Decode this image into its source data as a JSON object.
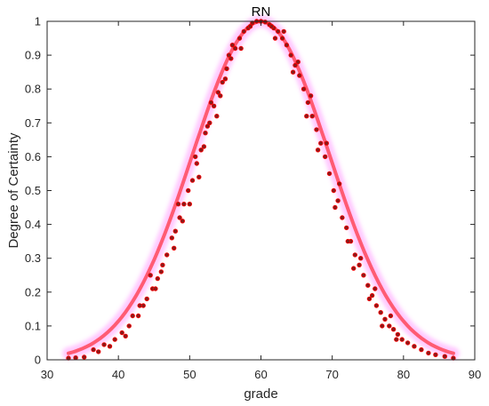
{
  "chart_data": {
    "type": "scatter",
    "title": "RN",
    "xlabel": "grade",
    "ylabel": "Degree of Certainty",
    "xlim": [
      30,
      90
    ],
    "ylim": [
      0,
      1
    ],
    "xticks": [
      "30",
      "40",
      "50",
      "60",
      "70",
      "80",
      "90"
    ],
    "yticks": [
      "0",
      "0.1",
      "0.2",
      "0.3",
      "0.4",
      "0.5",
      "0.6",
      "0.7",
      "0.8",
      "0.9",
      "1"
    ],
    "grid": false,
    "legend": "none",
    "colors": {
      "point_fill": "#8b1a1a",
      "point_halo": "#ff0000",
      "glow": "#ff66ff",
      "axes": "#262626"
    },
    "curve": {
      "center": 60,
      "sigma": 9.6,
      "peak": 1.0
    },
    "points": [
      {
        "x": 33.0,
        "y": 0.005
      },
      {
        "x": 34.0,
        "y": 0.006
      },
      {
        "x": 35.2,
        "y": 0.008
      },
      {
        "x": 36.5,
        "y": 0.03
      },
      {
        "x": 37.2,
        "y": 0.024
      },
      {
        "x": 38.0,
        "y": 0.045
      },
      {
        "x": 38.8,
        "y": 0.04
      },
      {
        "x": 39.5,
        "y": 0.06
      },
      {
        "x": 40.5,
        "y": 0.08
      },
      {
        "x": 41.5,
        "y": 0.1
      },
      {
        "x": 42.0,
        "y": 0.13
      },
      {
        "x": 42.8,
        "y": 0.13
      },
      {
        "x": 43.5,
        "y": 0.16
      },
      {
        "x": 44.0,
        "y": 0.18
      },
      {
        "x": 44.8,
        "y": 0.21
      },
      {
        "x": 45.5,
        "y": 0.24
      },
      {
        "x": 46.2,
        "y": 0.28
      },
      {
        "x": 46.8,
        "y": 0.31
      },
      {
        "x": 47.5,
        "y": 0.36
      },
      {
        "x": 48.0,
        "y": 0.38
      },
      {
        "x": 48.6,
        "y": 0.42
      },
      {
        "x": 49.2,
        "y": 0.46
      },
      {
        "x": 49.8,
        "y": 0.5
      },
      {
        "x": 50.4,
        "y": 0.53
      },
      {
        "x": 51.0,
        "y": 0.58
      },
      {
        "x": 51.6,
        "y": 0.62
      },
      {
        "x": 52.2,
        "y": 0.67
      },
      {
        "x": 52.8,
        "y": 0.7
      },
      {
        "x": 53.4,
        "y": 0.75
      },
      {
        "x": 54.0,
        "y": 0.79
      },
      {
        "x": 54.6,
        "y": 0.82
      },
      {
        "x": 55.2,
        "y": 0.86
      },
      {
        "x": 55.8,
        "y": 0.89
      },
      {
        "x": 56.4,
        "y": 0.92
      },
      {
        "x": 57.0,
        "y": 0.95
      },
      {
        "x": 57.6,
        "y": 0.97
      },
      {
        "x": 58.2,
        "y": 0.98
      },
      {
        "x": 58.8,
        "y": 0.995
      },
      {
        "x": 59.4,
        "y": 1.0
      },
      {
        "x": 60.0,
        "y": 1.0
      },
      {
        "x": 60.6,
        "y": 0.998
      },
      {
        "x": 61.2,
        "y": 0.99
      },
      {
        "x": 61.8,
        "y": 0.98
      },
      {
        "x": 62.4,
        "y": 0.97
      },
      {
        "x": 63.0,
        "y": 0.95
      },
      {
        "x": 63.6,
        "y": 0.93
      },
      {
        "x": 64.2,
        "y": 0.9
      },
      {
        "x": 64.8,
        "y": 0.87
      },
      {
        "x": 65.4,
        "y": 0.84
      },
      {
        "x": 66.0,
        "y": 0.8
      },
      {
        "x": 66.6,
        "y": 0.76
      },
      {
        "x": 67.2,
        "y": 0.72
      },
      {
        "x": 67.8,
        "y": 0.68
      },
      {
        "x": 68.4,
        "y": 0.64
      },
      {
        "x": 69.0,
        "y": 0.6
      },
      {
        "x": 69.6,
        "y": 0.55
      },
      {
        "x": 70.2,
        "y": 0.5
      },
      {
        "x": 70.8,
        "y": 0.47
      },
      {
        "x": 71.4,
        "y": 0.42
      },
      {
        "x": 72.0,
        "y": 0.39
      },
      {
        "x": 72.6,
        "y": 0.35
      },
      {
        "x": 73.2,
        "y": 0.31
      },
      {
        "x": 73.8,
        "y": 0.28
      },
      {
        "x": 74.4,
        "y": 0.25
      },
      {
        "x": 75.0,
        "y": 0.22
      },
      {
        "x": 75.6,
        "y": 0.19
      },
      {
        "x": 76.2,
        "y": 0.16
      },
      {
        "x": 76.8,
        "y": 0.14
      },
      {
        "x": 77.4,
        "y": 0.12
      },
      {
        "x": 78.0,
        "y": 0.1
      },
      {
        "x": 78.6,
        "y": 0.09
      },
      {
        "x": 79.2,
        "y": 0.075
      },
      {
        "x": 79.8,
        "y": 0.06
      },
      {
        "x": 80.6,
        "y": 0.05
      },
      {
        "x": 81.5,
        "y": 0.04
      },
      {
        "x": 82.5,
        "y": 0.03
      },
      {
        "x": 83.5,
        "y": 0.02
      },
      {
        "x": 84.5,
        "y": 0.015
      },
      {
        "x": 85.8,
        "y": 0.01
      },
      {
        "x": 87.0,
        "y": 0.005
      },
      {
        "x": 44.5,
        "y": 0.25
      },
      {
        "x": 46.0,
        "y": 0.26
      },
      {
        "x": 47.8,
        "y": 0.33
      },
      {
        "x": 48.4,
        "y": 0.46
      },
      {
        "x": 50.0,
        "y": 0.46
      },
      {
        "x": 50.8,
        "y": 0.6
      },
      {
        "x": 52.0,
        "y": 0.63
      },
      {
        "x": 53.0,
        "y": 0.76
      },
      {
        "x": 53.8,
        "y": 0.72
      },
      {
        "x": 55.0,
        "y": 0.83
      },
      {
        "x": 56.0,
        "y": 0.93
      },
      {
        "x": 57.2,
        "y": 0.92
      },
      {
        "x": 62.0,
        "y": 0.95
      },
      {
        "x": 63.2,
        "y": 0.97
      },
      {
        "x": 64.5,
        "y": 0.85
      },
      {
        "x": 65.2,
        "y": 0.88
      },
      {
        "x": 66.4,
        "y": 0.72
      },
      {
        "x": 67.0,
        "y": 0.78
      },
      {
        "x": 68.0,
        "y": 0.62
      },
      {
        "x": 69.2,
        "y": 0.64
      },
      {
        "x": 70.4,
        "y": 0.45
      },
      {
        "x": 71.0,
        "y": 0.52
      },
      {
        "x": 72.2,
        "y": 0.35
      },
      {
        "x": 73.0,
        "y": 0.27
      },
      {
        "x": 74.0,
        "y": 0.3
      },
      {
        "x": 75.2,
        "y": 0.18
      },
      {
        "x": 76.0,
        "y": 0.21
      },
      {
        "x": 77.0,
        "y": 0.1
      },
      {
        "x": 78.2,
        "y": 0.13
      },
      {
        "x": 79.0,
        "y": 0.06
      },
      {
        "x": 41.0,
        "y": 0.07
      },
      {
        "x": 43.0,
        "y": 0.16
      },
      {
        "x": 45.2,
        "y": 0.21
      },
      {
        "x": 49.0,
        "y": 0.41
      },
      {
        "x": 51.3,
        "y": 0.54
      },
      {
        "x": 52.5,
        "y": 0.69
      },
      {
        "x": 54.3,
        "y": 0.78
      },
      {
        "x": 55.5,
        "y": 0.9
      },
      {
        "x": 58.5,
        "y": 0.985
      },
      {
        "x": 61.5,
        "y": 0.985
      }
    ]
  }
}
